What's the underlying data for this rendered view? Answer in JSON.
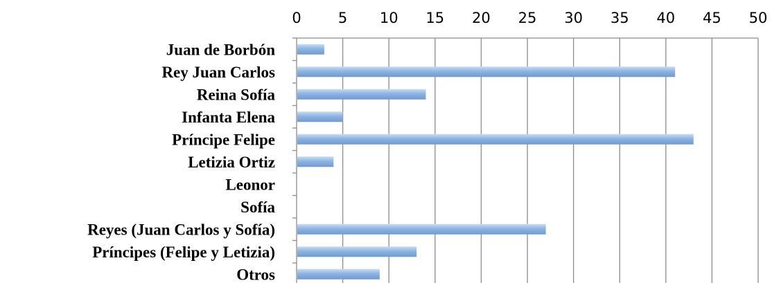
{
  "chart_data": {
    "type": "bar",
    "orientation": "horizontal",
    "title": "",
    "xlabel": "",
    "ylabel": "",
    "xlim": [
      0,
      50
    ],
    "x_ticks": [
      0,
      5,
      10,
      15,
      20,
      25,
      30,
      35,
      40,
      45,
      50
    ],
    "x_axis_position": "top",
    "grid": true,
    "legend": "none",
    "categories": [
      "Juan de  Borbón",
      "Rey Juan Carlos",
      "Reina Sofía",
      "Infanta Elena",
      "Príncipe Felipe",
      "Letizia Ortiz",
      "Leonor",
      "Sofía",
      "Reyes (Juan Carlos y Sofía)",
      "Príncipes (Felipe y Letizia)",
      "Otros"
    ],
    "values": [
      3,
      41,
      14,
      5,
      43,
      4,
      0,
      0,
      27,
      13,
      9
    ],
    "bar_color": "#8db4e2",
    "bar_color_light": "#c9dcf2",
    "bar_color_dark": "#6f9bd0"
  }
}
